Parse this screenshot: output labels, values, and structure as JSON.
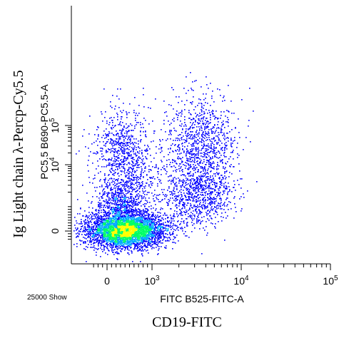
{
  "chart_data": {
    "type": "scatter",
    "title": "",
    "xlabel": "FITC B525-FITC-A",
    "ylabel": "PC5.5 B690-PC5.5-A",
    "outer_xlabel": "CD19-FITC",
    "outer_ylabel": "Ig Light chain λ-Percp-Cy5.5",
    "event_note": "25000 Show",
    "x_scale": "biexponential",
    "y_scale": "biexponential",
    "xlim": [
      -400,
      100000
    ],
    "ylim": [
      -400,
      100000
    ],
    "x_ticks": [
      {
        "value": 0,
        "label": "0"
      },
      {
        "value": 1000,
        "label": "10",
        "exp": "3"
      },
      {
        "value": 10000,
        "label": "10",
        "exp": "4"
      },
      {
        "value": 100000,
        "label": "10",
        "exp": "5"
      }
    ],
    "y_ticks": [
      {
        "value": 0,
        "label": "0"
      },
      {
        "value": 10000,
        "label": "10",
        "exp": "4"
      },
      {
        "value": 100000,
        "label": "10",
        "exp": "5"
      }
    ],
    "grid": false,
    "density_colors": [
      "#0000ff",
      "#00aaff",
      "#00ff66",
      "#ffff00",
      "#ff8800"
    ],
    "populations": [
      {
        "name": "",
        "x_center": 400,
        "y_center": 30,
        "count": 4200
      },
      {
        "name": "",
        "x_center": 350,
        "y_center": 800,
        "count": 900
      },
      {
        "name": "",
        "x_center": 400,
        "y_center": 6000,
        "count": 500
      },
      {
        "name": "",
        "x_center": 330,
        "y_center": 35000,
        "count": 450
      },
      {
        "name": "",
        "x_center": 3500,
        "y_center": 25000,
        "count": 1100
      },
      {
        "name": "",
        "x_center": 3000,
        "y_center": 1500,
        "count": 700
      }
    ]
  }
}
